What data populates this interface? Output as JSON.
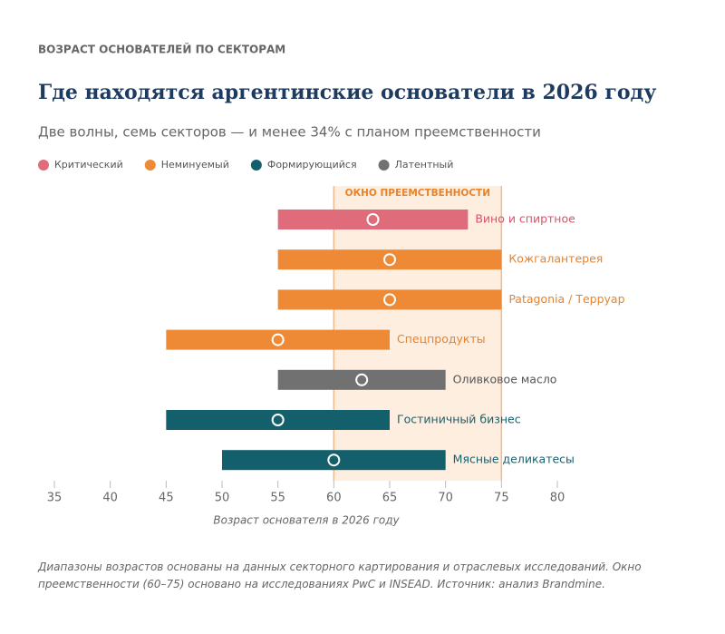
{
  "chart_data": {
    "type": "range",
    "eyebrow": "ВОЗРАСТ ОСНОВАТЕЛЕЙ ПО СЕКТОРАМ",
    "title": "Где находятся аргентинские основатели в 2026 году",
    "subtitle": "Две волны, семь секторов — и менее 34% с планом преемственности",
    "categories": [
      "Вино и спиртное",
      "Кожгалантерея",
      "Patagonia / Терруар",
      "Спецпродукты",
      "Оливковое масло",
      "Гостиничный бизнес",
      "Мясные деликатесы"
    ],
    "series": [
      {
        "name": "Критический",
        "color": "#e06b7a",
        "label_color": "#d9536a",
        "start": [
          55,
          null,
          null,
          null,
          null,
          null,
          null
        ],
        "end": [
          72,
          null,
          null,
          null,
          null,
          null,
          null
        ],
        "mid": [
          63.5,
          null,
          null,
          null,
          null,
          null,
          null
        ]
      },
      {
        "name": "Неминуемый",
        "color": "#ee8a36",
        "label_color": "#e8832a",
        "start": [
          null,
          55,
          55,
          45,
          null,
          null,
          null
        ],
        "end": [
          null,
          75,
          75,
          65,
          null,
          null,
          null
        ],
        "mid": [
          null,
          65,
          65,
          55,
          null,
          null,
          null
        ]
      },
      {
        "name": "Формирующийся",
        "color": "#135f6b",
        "label_color": "#17616e",
        "start": [
          null,
          null,
          null,
          null,
          null,
          45,
          50
        ],
        "end": [
          null,
          null,
          null,
          null,
          null,
          65,
          70
        ],
        "mid": [
          null,
          null,
          null,
          null,
          null,
          55,
          60
        ]
      },
      {
        "name": "Латентный",
        "color": "#717171",
        "label_color": "#555555",
        "start": [
          null,
          null,
          null,
          null,
          55,
          null,
          null
        ],
        "end": [
          null,
          null,
          null,
          null,
          70,
          null,
          null
        ],
        "mid": [
          null,
          null,
          null,
          null,
          62.5,
          null,
          null
        ]
      }
    ],
    "window": {
      "label": "ОКНО ПРЕЕМСТВЕННОСТИ",
      "range": [
        60,
        75
      ],
      "color": "#fdeee0"
    },
    "xlim": [
      35,
      80
    ],
    "xticks": [
      35,
      40,
      45,
      50,
      55,
      60,
      65,
      70,
      75,
      80
    ],
    "xlabel": "Возраст основателя в 2026 году",
    "footnote": "Диапазоны возрастов основаны на данных секторного картирования и отраслевых исследований. Окно преемственности (60–75) основано на исследованиях PwC и INSEAD. Источник: анализ Brandmine."
  }
}
